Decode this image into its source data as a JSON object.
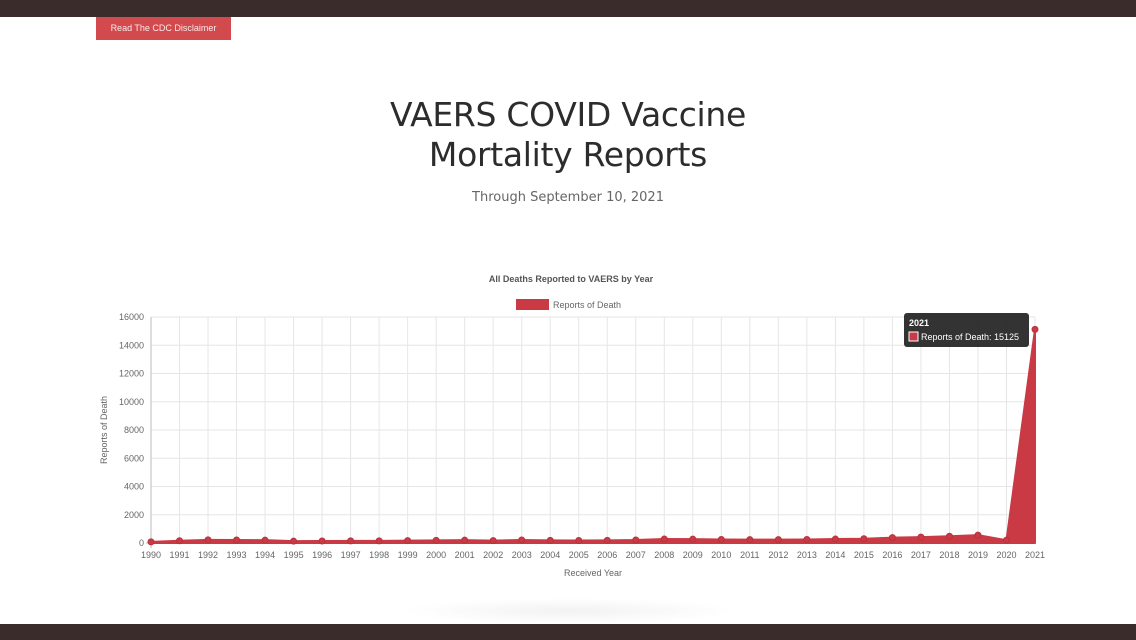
{
  "header": {
    "disclaimer_label": "Read The CDC Disclaimer"
  },
  "page": {
    "title_line1": "VAERS COVID Vaccine",
    "title_line2": "Mortality Reports",
    "subtitle": "Through September 10, 2021"
  },
  "colors": {
    "accent": "#d24a4e",
    "series": "#c93a45",
    "bars": "#3a2c2b"
  },
  "chart_data": {
    "type": "area",
    "title": "All Deaths Reported to VAERS by Year",
    "xlabel": "Received Year",
    "ylabel": "Reports of Death",
    "x": [
      "1990",
      "1991",
      "1992",
      "1993",
      "1994",
      "1995",
      "1996",
      "1997",
      "1998",
      "1999",
      "2000",
      "2001",
      "2002",
      "2003",
      "2004",
      "2005",
      "2006",
      "2007",
      "2008",
      "2009",
      "2010",
      "2011",
      "2012",
      "2013",
      "2014",
      "2015",
      "2016",
      "2017",
      "2018",
      "2019",
      "2020",
      "2021"
    ],
    "series": [
      {
        "name": "Reports of Death",
        "values": [
          80,
          160,
          220,
          210,
          200,
          130,
          140,
          150,
          150,
          170,
          190,
          200,
          170,
          210,
          190,
          180,
          190,
          210,
          280,
          270,
          250,
          240,
          240,
          250,
          280,
          300,
          380,
          420,
          480,
          560,
          200,
          15125
        ]
      }
    ],
    "ylim": [
      0,
      16000
    ],
    "yticks": [
      "0",
      "2000",
      "4000",
      "6000",
      "8000",
      "10000",
      "12000",
      "14000",
      "16000"
    ],
    "grid": true,
    "legend": "top-center",
    "tooltip": {
      "title": "2021",
      "label": "Reports of Death: 15125"
    }
  }
}
